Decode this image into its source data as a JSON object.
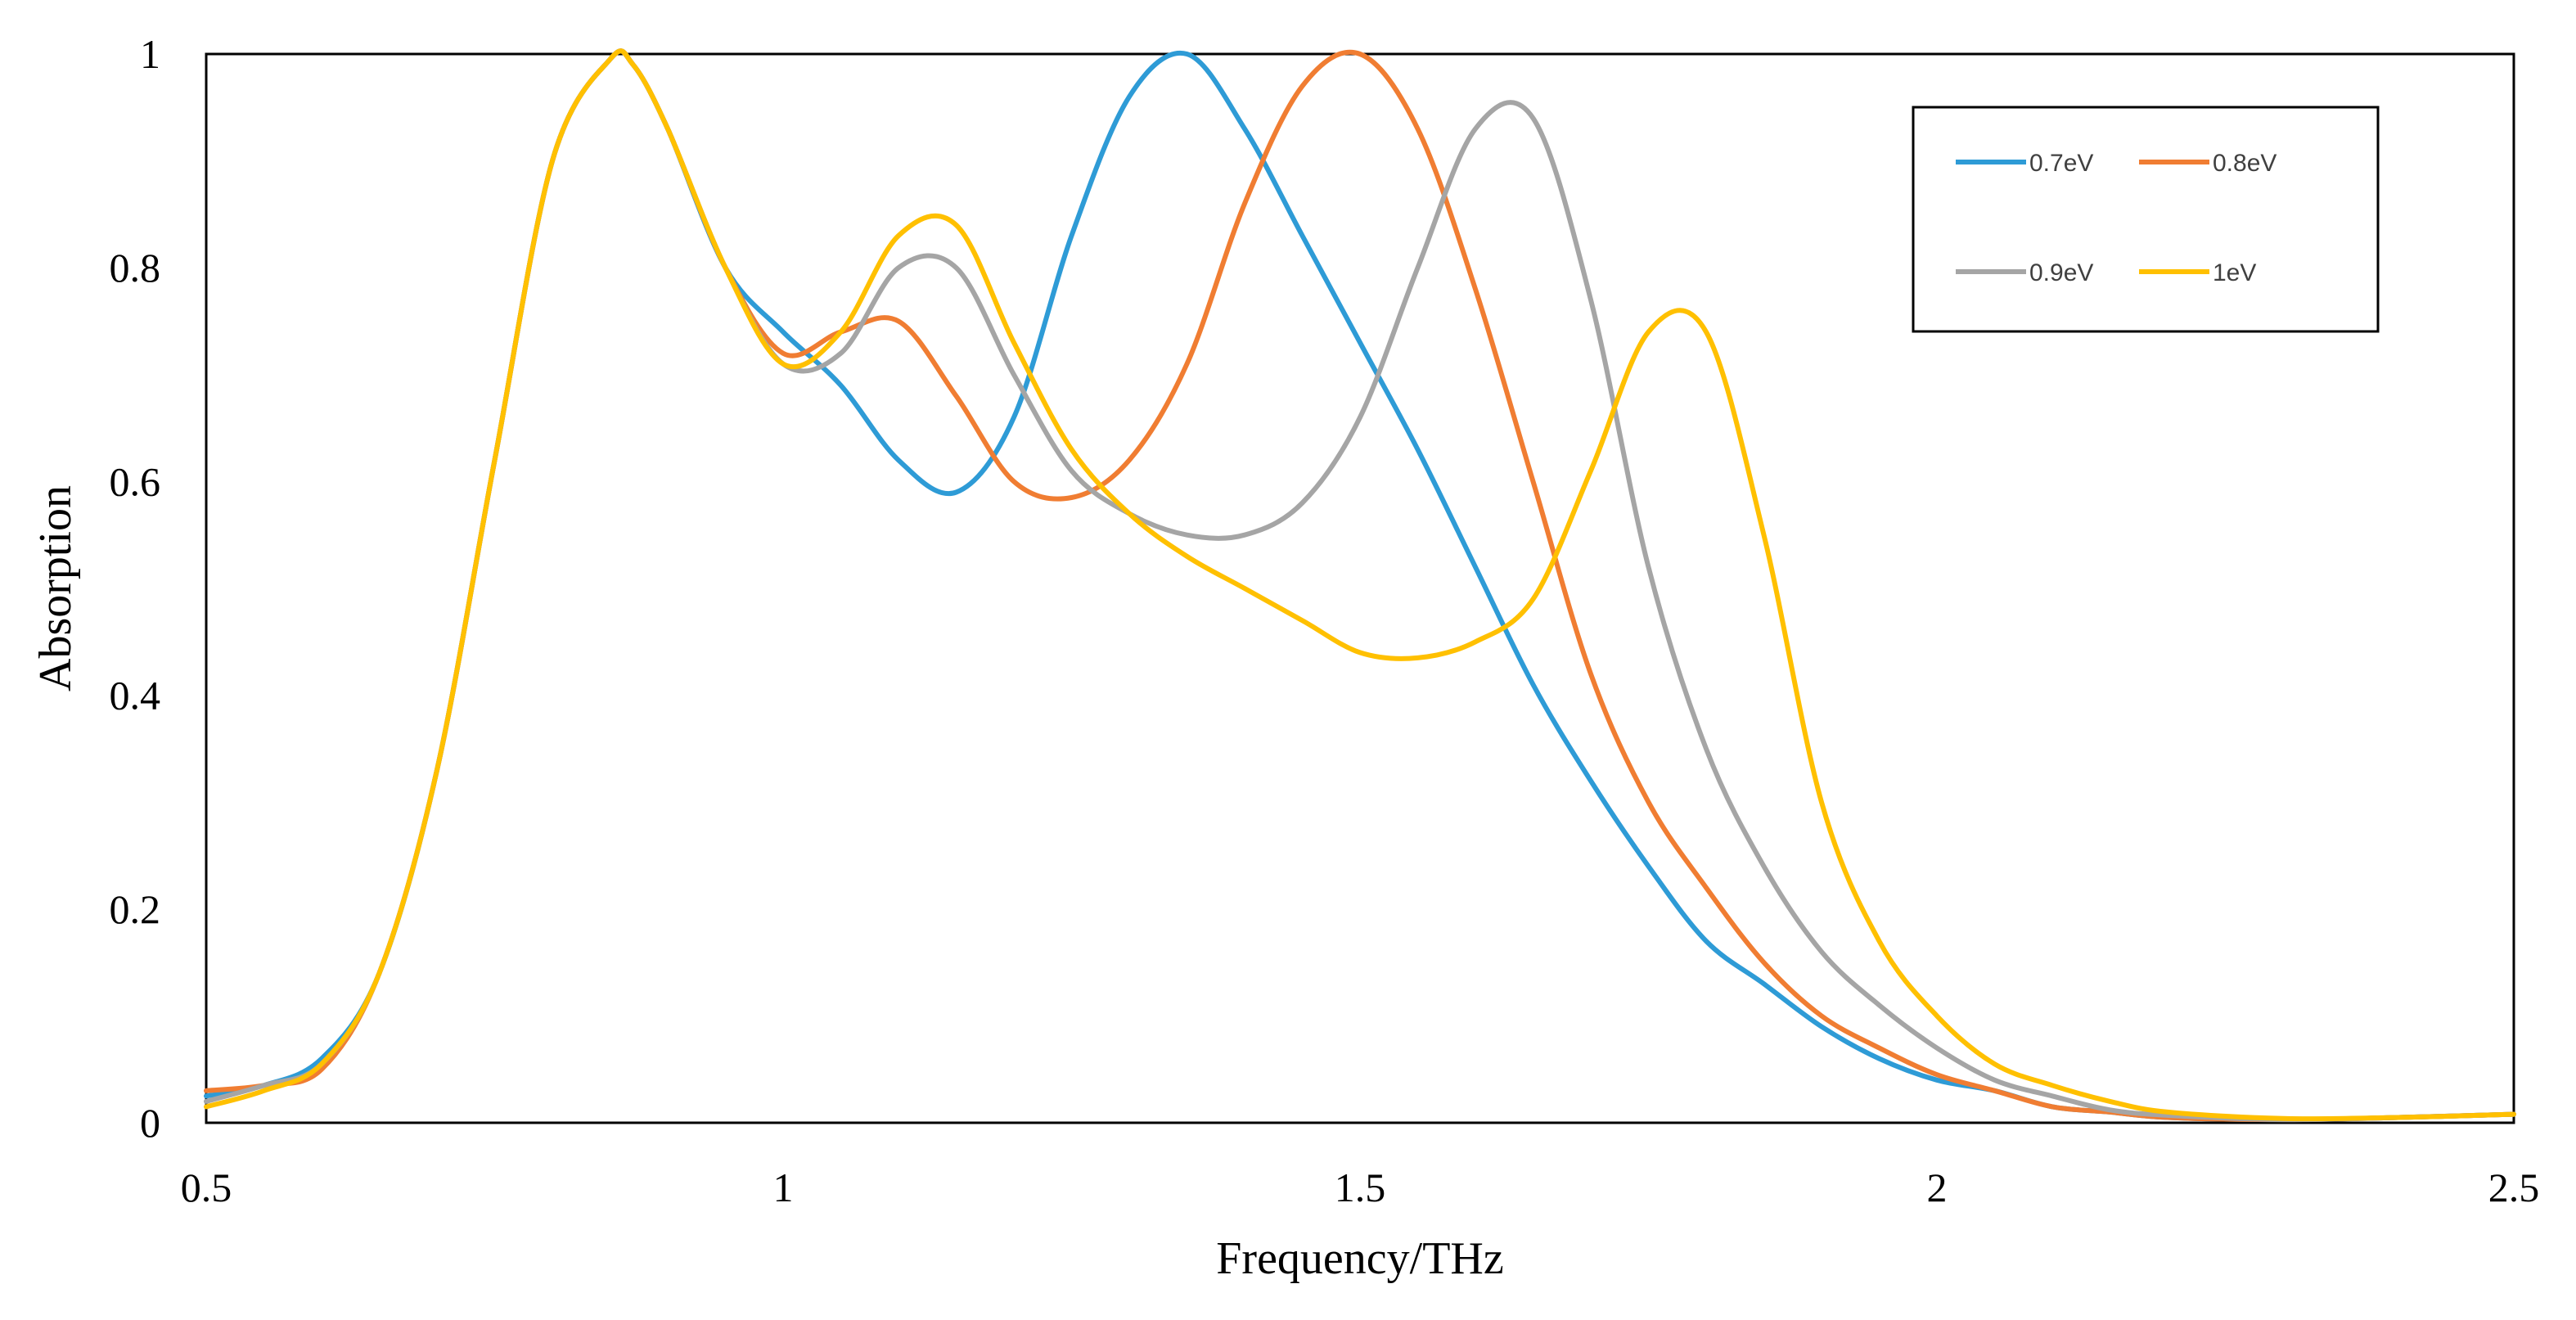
{
  "chart_data": {
    "type": "line",
    "title": "",
    "xlabel": "Frequency/THz",
    "ylabel": "Absorption",
    "xlim": [
      0.5,
      2.5
    ],
    "ylim": [
      0,
      1
    ],
    "xticks": [
      "0.5",
      "1",
      "1.5",
      "2",
      "2.5"
    ],
    "yticks": [
      "0",
      "0.2",
      "0.4",
      "0.6",
      "0.8",
      "1"
    ],
    "grid": false,
    "legend_position": "top-right",
    "x": [
      0.5,
      0.55,
      0.6,
      0.65,
      0.7,
      0.75,
      0.8,
      0.85,
      0.87,
      0.9,
      0.95,
      1.0,
      1.05,
      1.1,
      1.15,
      1.2,
      1.25,
      1.3,
      1.35,
      1.4,
      1.45,
      1.5,
      1.55,
      1.6,
      1.65,
      1.7,
      1.75,
      1.8,
      1.85,
      1.9,
      1.95,
      2.0,
      2.05,
      2.1,
      2.15,
      2.2,
      2.3,
      2.4,
      2.5
    ],
    "series": [
      {
        "name": "0.7eV",
        "color": "#2E9BD6",
        "values": [
          0.025,
          0.035,
          0.06,
          0.14,
          0.33,
          0.62,
          0.9,
          0.995,
          0.99,
          0.93,
          0.8,
          0.74,
          0.69,
          0.62,
          0.59,
          0.66,
          0.83,
          0.96,
          1.0,
          0.93,
          0.83,
          0.73,
          0.63,
          0.52,
          0.41,
          0.32,
          0.24,
          0.17,
          0.13,
          0.09,
          0.06,
          0.04,
          0.03,
          0.015,
          0.01,
          0.005,
          0.003,
          0.005,
          0.008
        ]
      },
      {
        "name": "0.8eV",
        "color": "#F07D32",
        "values": [
          0.03,
          0.035,
          0.05,
          0.14,
          0.33,
          0.62,
          0.9,
          0.995,
          0.99,
          0.93,
          0.8,
          0.72,
          0.74,
          0.75,
          0.68,
          0.6,
          0.585,
          0.62,
          0.71,
          0.86,
          0.97,
          1.0,
          0.93,
          0.78,
          0.6,
          0.42,
          0.3,
          0.22,
          0.15,
          0.1,
          0.07,
          0.045,
          0.03,
          0.015,
          0.01,
          0.005,
          0.003,
          0.005,
          0.008
        ]
      },
      {
        "name": "0.9eV",
        "color": "#A5A5A5",
        "values": [
          0.02,
          0.035,
          0.055,
          0.14,
          0.33,
          0.62,
          0.9,
          0.995,
          0.99,
          0.93,
          0.8,
          0.71,
          0.72,
          0.8,
          0.8,
          0.7,
          0.61,
          0.57,
          0.55,
          0.55,
          0.58,
          0.66,
          0.8,
          0.93,
          0.94,
          0.77,
          0.52,
          0.35,
          0.24,
          0.16,
          0.11,
          0.07,
          0.04,
          0.025,
          0.012,
          0.007,
          0.003,
          0.005,
          0.008
        ]
      },
      {
        "name": "1eV",
        "color": "#FFC000",
        "values": [
          0.015,
          0.03,
          0.055,
          0.14,
          0.33,
          0.62,
          0.9,
          0.995,
          0.99,
          0.93,
          0.8,
          0.71,
          0.74,
          0.83,
          0.84,
          0.73,
          0.63,
          0.57,
          0.53,
          0.5,
          0.47,
          0.44,
          0.435,
          0.45,
          0.49,
          0.61,
          0.74,
          0.74,
          0.55,
          0.3,
          0.17,
          0.1,
          0.055,
          0.035,
          0.02,
          0.01,
          0.004,
          0.005,
          0.008
        ]
      }
    ]
  }
}
